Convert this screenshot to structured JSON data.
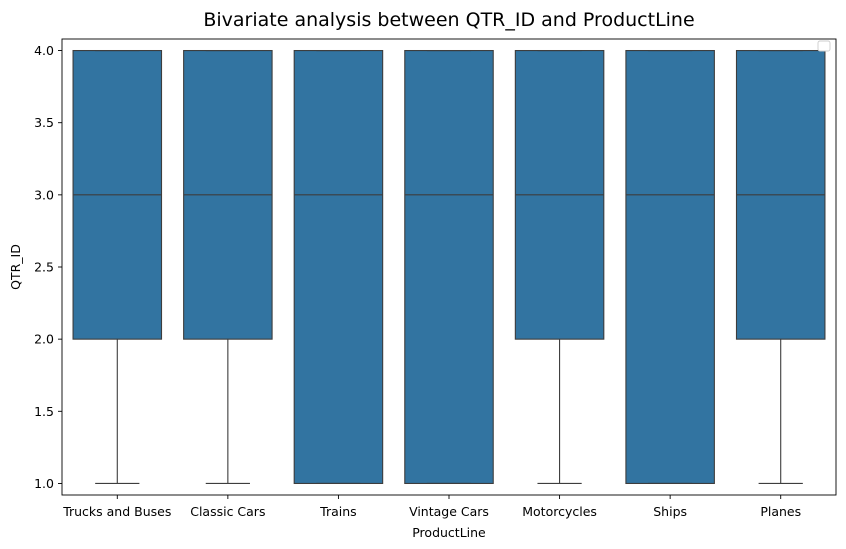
{
  "chart_data": {
    "type": "box",
    "title": "Bivariate analysis between QTR_ID and ProductLine",
    "xlabel": "ProductLine",
    "ylabel": "QTR_ID",
    "ylim": [
      0.92,
      4.08
    ],
    "yticks": [
      1.0,
      1.5,
      2.0,
      2.5,
      3.0,
      3.5,
      4.0
    ],
    "ytick_labels": [
      "1.0",
      "1.5",
      "2.0",
      "2.5",
      "3.0",
      "3.5",
      "4.0"
    ],
    "grid": false,
    "legend": "top-right (empty)",
    "box_color": "#3274a1",
    "edge_color": "#3d3d3d",
    "categories": [
      "Trucks and Buses",
      "Classic Cars",
      "Trains",
      "Vintage Cars",
      "Motorcycles",
      "Ships",
      "Planes"
    ],
    "boxes": [
      {
        "category": "Trucks and Buses",
        "whisker_low": 1,
        "q1": 2,
        "median": 3,
        "q3": 4,
        "whisker_high": 4
      },
      {
        "category": "Classic Cars",
        "whisker_low": 1,
        "q1": 2,
        "median": 3,
        "q3": 4,
        "whisker_high": 4
      },
      {
        "category": "Trains",
        "whisker_low": 1,
        "q1": 1,
        "median": 3,
        "q3": 4,
        "whisker_high": 4
      },
      {
        "category": "Vintage Cars",
        "whisker_low": 1,
        "q1": 1,
        "median": 3,
        "q3": 4,
        "whisker_high": 4
      },
      {
        "category": "Motorcycles",
        "whisker_low": 1,
        "q1": 2,
        "median": 3,
        "q3": 4,
        "whisker_high": 4
      },
      {
        "category": "Ships",
        "whisker_low": 1,
        "q1": 1,
        "median": 3,
        "q3": 4,
        "whisker_high": 4
      },
      {
        "category": "Planes",
        "whisker_low": 1,
        "q1": 2,
        "median": 3,
        "q3": 4,
        "whisker_high": 4
      }
    ]
  }
}
